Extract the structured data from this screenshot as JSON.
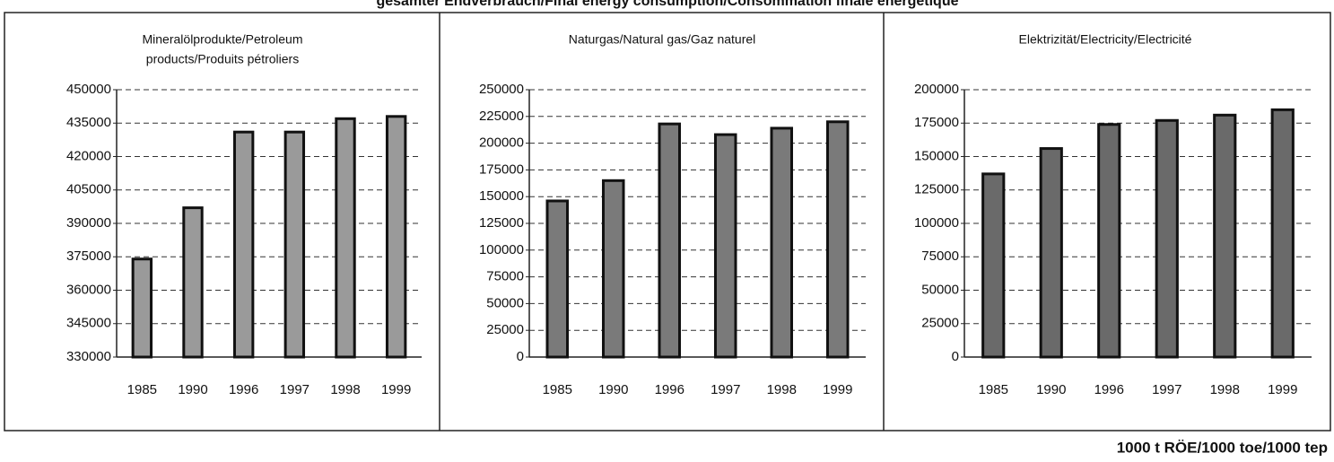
{
  "title": "gesamter Endverbrauch/Final energy consumption/Consommation finale énergétique",
  "unit": "1000 t RÖE/1000 toe/1000 tep",
  "chart_data": [
    {
      "type": "bar",
      "title": [
        "Mineralölprodukte/Petroleum",
        "products/Produits pétroliers"
      ],
      "categories": [
        "1985",
        "1990",
        "1996",
        "1997",
        "1998",
        "1999"
      ],
      "values": [
        374000,
        397000,
        431000,
        431000,
        437000,
        438000
      ],
      "color": "#9a9a9a",
      "grid": true,
      "ylim": [
        330000,
        450000
      ],
      "yticks": [
        330000,
        345000,
        360000,
        375000,
        390000,
        405000,
        420000,
        435000,
        450000
      ]
    },
    {
      "type": "bar",
      "title": [
        "Naturgas/Natural gas/Gaz naturel"
      ],
      "categories": [
        "1985",
        "1990",
        "1996",
        "1997",
        "1998",
        "1999"
      ],
      "values": [
        146000,
        165000,
        218000,
        208000,
        214000,
        220000
      ],
      "color": "#7a7a7a",
      "grid": true,
      "ylim": [
        0,
        250000
      ],
      "yticks": [
        0,
        25000,
        50000,
        75000,
        100000,
        125000,
        150000,
        175000,
        200000,
        225000,
        250000
      ]
    },
    {
      "type": "bar",
      "title": [
        "Elektrizität/Electricity/Electricité"
      ],
      "categories": [
        "1985",
        "1990",
        "1996",
        "1997",
        "1998",
        "1999"
      ],
      "values": [
        137000,
        156000,
        174000,
        177000,
        181000,
        185000
      ],
      "color": "#6a6a6a",
      "grid": true,
      "ylim": [
        0,
        200000
      ],
      "yticks": [
        0,
        25000,
        50000,
        75000,
        100000,
        125000,
        150000,
        175000,
        200000
      ]
    }
  ]
}
